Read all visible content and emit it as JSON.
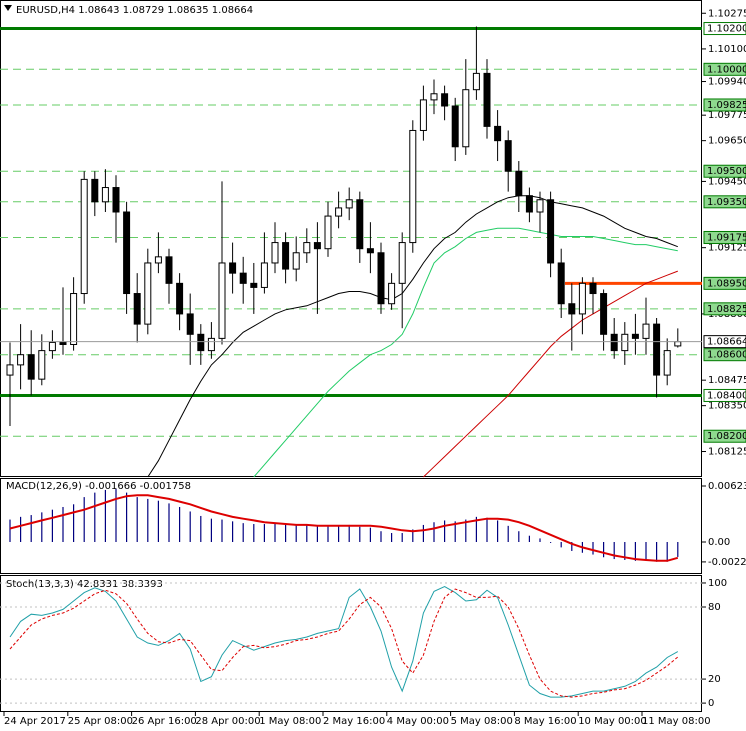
{
  "chart_data": {
    "type": "candlestick",
    "title": "EURUSD,H4  1.08643 1.08729 1.08635 1.08664",
    "ylim": [
      1.08,
      1.1034
    ],
    "yticks": [
      {
        "value": 1.10275,
        "label": "1.10275"
      },
      {
        "value": 1.101,
        "label": "1.10100"
      },
      {
        "value": 1.0994,
        "label": "1.09940"
      },
      {
        "value": 1.09775,
        "label": "1.09775"
      },
      {
        "value": 1.0965,
        "label": "1.09650"
      },
      {
        "value": 1.0945,
        "label": "1.09450"
      },
      {
        "value": 1.09125,
        "label": "1.09125"
      },
      {
        "value": 1.088,
        "label": "1.08800"
      },
      {
        "value": 1.08475,
        "label": "1.08475"
      },
      {
        "value": 1.0835,
        "label": "1.08350"
      },
      {
        "value": 1.08125,
        "label": "1.08125"
      }
    ],
    "candles": [
      [
        1.085,
        1.0866,
        1.0825,
        1.0855
      ],
      [
        1.0855,
        1.0875,
        1.0843,
        1.086
      ],
      [
        1.086,
        1.0872,
        1.084,
        1.0848
      ],
      [
        1.0848,
        1.087,
        1.0845,
        1.0862
      ],
      [
        1.0862,
        1.0872,
        1.0858,
        1.0866
      ],
      [
        1.0866,
        1.0893,
        1.086,
        1.0865
      ],
      [
        1.0865,
        1.0898,
        1.0862,
        1.089
      ],
      [
        1.089,
        1.095,
        1.0885,
        1.0946
      ],
      [
        1.0946,
        1.095,
        1.0928,
        1.0935
      ],
      [
        1.0935,
        1.0951,
        1.093,
        1.0942
      ],
      [
        1.0942,
        1.0948,
        1.0915,
        1.093
      ],
      [
        1.093,
        1.0935,
        1.088,
        1.089
      ],
      [
        1.089,
        1.09,
        1.0866,
        1.0875
      ],
      [
        1.0875,
        1.0912,
        1.087,
        1.0905
      ],
      [
        1.0905,
        1.092,
        1.09,
        1.0908
      ],
      [
        1.0908,
        1.0912,
        1.0885,
        1.0895
      ],
      [
        1.0895,
        1.09,
        1.0872,
        1.088
      ],
      [
        1.088,
        1.089,
        1.0855,
        1.087
      ],
      [
        1.087,
        1.0875,
        1.0855,
        1.0862
      ],
      [
        1.0862,
        1.0876,
        1.0858,
        1.0868
      ],
      [
        1.0868,
        1.0945,
        1.0865,
        1.0905
      ],
      [
        1.0905,
        1.0915,
        1.089,
        1.09
      ],
      [
        1.09,
        1.0908,
        1.0885,
        1.0895
      ],
      [
        1.0895,
        1.0905,
        1.088,
        1.0893
      ],
      [
        1.0893,
        1.092,
        1.089,
        1.0905
      ],
      [
        1.0905,
        1.0925,
        1.09,
        1.0915
      ],
      [
        1.0915,
        1.092,
        1.0895,
        1.0902
      ],
      [
        1.0902,
        1.0918,
        1.0896,
        1.091
      ],
      [
        1.091,
        1.0922,
        1.0905,
        1.0915
      ],
      [
        1.0915,
        1.0925,
        1.088,
        1.0912
      ],
      [
        1.0912,
        1.0935,
        1.0908,
        1.0928
      ],
      [
        1.0928,
        1.094,
        1.0922,
        1.0932
      ],
      [
        1.0932,
        1.0942,
        1.0926,
        1.0936
      ],
      [
        1.0936,
        1.094,
        1.0905,
        1.0912
      ],
      [
        1.0912,
        1.0925,
        1.09,
        1.091
      ],
      [
        1.091,
        1.0915,
        1.088,
        1.0885
      ],
      [
        1.0885,
        1.09,
        1.0882,
        1.0895
      ],
      [
        1.0895,
        1.092,
        1.0873,
        1.0915
      ],
      [
        1.0915,
        1.0975,
        1.091,
        1.097
      ],
      [
        1.097,
        1.0992,
        1.0965,
        1.0985
      ],
      [
        1.0985,
        1.0995,
        1.0978,
        1.0988
      ],
      [
        1.0988,
        1.0992,
        1.0975,
        1.0982
      ],
      [
        1.0982,
        1.0986,
        1.0955,
        1.0962
      ],
      [
        1.0962,
        1.1005,
        1.0958,
        1.099
      ],
      [
        1.099,
        1.1021,
        1.0985,
        1.0998
      ],
      [
        1.0998,
        1.1005,
        1.0966,
        1.0972
      ],
      [
        1.0972,
        1.098,
        1.0955,
        1.0965
      ],
      [
        1.0965,
        1.097,
        1.094,
        1.095
      ],
      [
        1.095,
        1.0955,
        1.093,
        1.0938
      ],
      [
        1.0938,
        1.0942,
        1.0925,
        1.093
      ],
      [
        1.093,
        1.094,
        1.092,
        1.0936
      ],
      [
        1.0936,
        1.094,
        1.0898,
        1.0905
      ],
      [
        1.0905,
        1.0912,
        1.0878,
        1.0885
      ],
      [
        1.0885,
        1.0895,
        1.0862,
        1.088
      ],
      [
        1.088,
        1.0898,
        1.087,
        1.0895
      ],
      [
        1.0895,
        1.0898,
        1.088,
        1.089
      ],
      [
        1.089,
        1.0892,
        1.0862,
        1.087
      ],
      [
        1.087,
        1.0878,
        1.0858,
        1.0862
      ],
      [
        1.0862,
        1.0876,
        1.0855,
        1.087
      ],
      [
        1.087,
        1.088,
        1.086,
        1.0868
      ],
      [
        1.0868,
        1.0888,
        1.086,
        1.0875
      ],
      [
        1.0875,
        1.0878,
        1.0839,
        1.085
      ],
      [
        1.085,
        1.0868,
        1.0845,
        1.0862
      ],
      [
        1.08643,
        1.08729,
        1.08635,
        1.08664
      ]
    ],
    "moving_averages": [
      {
        "color": "#000000",
        "values": [
          null,
          null,
          null,
          null,
          null,
          null,
          null,
          null,
          null,
          null,
          null,
          null,
          null,
          1.08,
          1.0808,
          1.0818,
          1.0828,
          1.0838,
          1.0847,
          1.0855,
          1.086,
          1.0866,
          1.0871,
          1.0874,
          1.0877,
          1.088,
          1.0882,
          1.0883,
          1.0884,
          1.0886,
          1.0888,
          1.089,
          1.0891,
          1.0891,
          1.089,
          1.0888,
          1.0887,
          1.089,
          1.0897,
          1.0905,
          1.0912,
          1.0917,
          1.092,
          1.0925,
          1.0929,
          1.0932,
          1.0935,
          1.0937,
          1.0938,
          1.0938,
          1.0937,
          1.0935,
          1.0934,
          1.0933,
          1.0932,
          1.093,
          1.0928,
          1.0925,
          1.0922,
          1.092,
          1.0918,
          1.0917,
          1.0915,
          1.0913
        ]
      },
      {
        "color": "#22cc66",
        "values": [
          null,
          null,
          null,
          null,
          null,
          null,
          null,
          null,
          null,
          null,
          null,
          null,
          null,
          null,
          null,
          null,
          null,
          null,
          null,
          null,
          null,
          null,
          null,
          1.08,
          1.0806,
          1.0812,
          1.0818,
          1.0824,
          1.083,
          1.0836,
          1.0842,
          1.0847,
          1.0852,
          1.0856,
          1.086,
          1.0862,
          1.0865,
          1.087,
          1.088,
          1.0893,
          1.0905,
          1.091,
          1.0913,
          1.0917,
          1.092,
          1.0921,
          1.0922,
          1.0922,
          1.0922,
          1.0921,
          1.092,
          1.0919,
          1.0918,
          1.0918,
          1.0918,
          1.0918,
          1.0917,
          1.0916,
          1.0915,
          1.0914,
          1.0914,
          1.0913,
          1.0912,
          1.0911
        ]
      },
      {
        "color": "#cc0000",
        "values": [
          null,
          null,
          null,
          null,
          null,
          null,
          null,
          null,
          null,
          null,
          null,
          null,
          null,
          null,
          null,
          null,
          null,
          null,
          null,
          null,
          null,
          null,
          null,
          null,
          null,
          null,
          null,
          null,
          null,
          null,
          null,
          null,
          null,
          null,
          null,
          null,
          null,
          null,
          null,
          1.08,
          1.0805,
          1.081,
          1.0815,
          1.082,
          1.0825,
          1.083,
          1.0835,
          1.084,
          1.0846,
          1.0852,
          1.0858,
          1.0864,
          1.0869,
          1.0873,
          1.0877,
          1.088,
          1.0883,
          1.0886,
          1.0889,
          1.0892,
          1.0895,
          1.0897,
          1.0899,
          1.0901
        ]
      }
    ],
    "levels": [
      {
        "value": 1.102,
        "label": "1.10200",
        "style": "solid"
      },
      {
        "value": 1.1,
        "label": "1.10000",
        "style": "dashed"
      },
      {
        "value": 1.09825,
        "label": "1.09825",
        "style": "dashed"
      },
      {
        "value": 1.095,
        "label": "1.09500",
        "style": "dashed"
      },
      {
        "value": 1.0935,
        "label": "1.09350",
        "style": "dashed"
      },
      {
        "value": 1.09175,
        "label": "1.09175",
        "style": "dashed"
      },
      {
        "value": 1.0895,
        "label": "1.08950",
        "style": "orange"
      },
      {
        "value": 1.08825,
        "label": "1.08825",
        "style": "dashed"
      },
      {
        "value": 1.086,
        "label": "1.08600",
        "style": "dashed"
      },
      {
        "value": 1.084,
        "label": "1.08400",
        "style": "solid"
      },
      {
        "value": 1.082,
        "label": "1.08200",
        "style": "dashed"
      }
    ],
    "current_price": 1.08664,
    "macd": {
      "title": "MACD(12,26,9) -0.001666 -0.001758",
      "ylim": [
        -0.003565,
        0.007017
      ],
      "yticks": [
        0.006237,
        {
          "value": 0,
          "label": "0.00"
        },
        -0.002218
      ],
      "histogram": {
        "color": "#000080",
        "values": [
          0.0025,
          0.0028,
          0.003,
          0.0033,
          0.0036,
          0.0039,
          0.0042,
          0.005,
          0.0055,
          0.0058,
          0.0059,
          0.0055,
          0.005,
          0.0048,
          0.0046,
          0.0043,
          0.0039,
          0.0034,
          0.0029,
          0.0026,
          0.0025,
          0.0023,
          0.0021,
          0.002,
          0.002,
          0.0021,
          0.002,
          0.0019,
          0.0019,
          0.0018,
          0.0018,
          0.0018,
          0.0019,
          0.0017,
          0.0016,
          0.0012,
          0.001,
          0.001,
          0.0014,
          0.0019,
          0.0022,
          0.0024,
          0.0023,
          0.0025,
          0.0028,
          0.0027,
          0.0024,
          0.0018,
          0.0012,
          0.0007,
          0.0004,
          -0.0001,
          -0.0006,
          -0.001,
          -0.0012,
          -0.0014,
          -0.0017,
          -0.0019,
          -0.002,
          -0.0021,
          -0.0021,
          -0.0022,
          -0.0022,
          -0.001666
        ]
      },
      "signal": {
        "color": "#dd0000",
        "values": [
          0.0015,
          0.0018,
          0.0021,
          0.0024,
          0.0027,
          0.003,
          0.0033,
          0.0036,
          0.004,
          0.0044,
          0.0048,
          0.0051,
          0.0052,
          0.0052,
          0.005,
          0.0048,
          0.0045,
          0.0042,
          0.0038,
          0.0034,
          0.0031,
          0.0028,
          0.0026,
          0.0024,
          0.0022,
          0.0021,
          0.002,
          0.0019,
          0.0019,
          0.0018,
          0.0018,
          0.0018,
          0.0018,
          0.0018,
          0.0018,
          0.0017,
          0.0015,
          0.0013,
          0.0012,
          0.0013,
          0.0015,
          0.0018,
          0.002,
          0.0022,
          0.0024,
          0.0026,
          0.0026,
          0.0025,
          0.0022,
          0.0018,
          0.0013,
          0.0008,
          0.0003,
          -0.0002,
          -0.0006,
          -0.0009,
          -0.0012,
          -0.0015,
          -0.0017,
          -0.0019,
          -0.002,
          -0.0021,
          -0.0021,
          -0.001758
        ]
      }
    },
    "stoch": {
      "title": "Stoch(13,3,3) 42.8331 38.3393",
      "ylim": [
        -7.4,
        105.8
      ],
      "yticks": [
        100,
        80,
        20,
        0
      ],
      "main": {
        "color": "#20a0a8",
        "values": [
          55,
          68,
          74,
          73,
          75,
          78,
          85,
          92,
          96,
          93,
          85,
          70,
          55,
          50,
          48,
          52,
          58,
          45,
          18,
          22,
          40,
          52,
          48,
          44,
          47,
          50,
          52,
          53,
          55,
          58,
          60,
          62,
          88,
          95,
          80,
          60,
          30,
          10,
          35,
          75,
          93,
          97,
          92,
          85,
          86,
          94,
          88,
          65,
          40,
          15,
          8,
          5,
          5,
          6,
          8,
          10,
          10,
          12,
          14,
          18,
          25,
          30,
          38,
          42.8331
        ]
      },
      "signal": {
        "color": "#dd0000",
        "values": [
          45,
          55,
          65,
          70,
          73,
          75,
          79,
          85,
          91,
          94,
          91,
          83,
          70,
          58,
          51,
          50,
          53,
          52,
          40,
          28,
          27,
          38,
          47,
          48,
          46,
          47,
          49,
          52,
          53,
          55,
          58,
          60,
          70,
          82,
          88,
          80,
          62,
          35,
          25,
          40,
          68,
          88,
          95,
          92,
          88,
          88,
          89,
          80,
          62,
          40,
          20,
          10,
          6,
          5,
          6,
          8,
          9,
          11,
          12,
          15,
          19,
          25,
          31,
          38.3393
        ]
      }
    },
    "time_labels": [
      "24 Apr 2017",
      "25 Apr 08:00",
      "26 Apr 16:00",
      "28 Apr 00:00",
      "1 May 08:00",
      "2 May 16:00",
      "4 May 00:00",
      "5 May 08:00",
      "8 May 16:00",
      "10 May 00:00",
      "11 May 08:00"
    ]
  }
}
